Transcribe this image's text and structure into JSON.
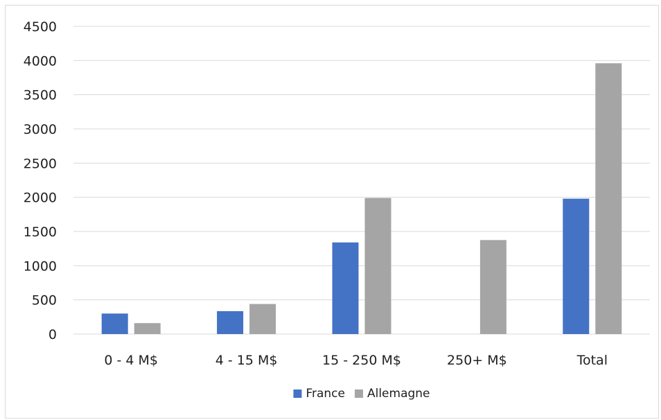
{
  "chart_data": {
    "type": "bar",
    "title": "",
    "xlabel": "",
    "ylabel": "",
    "categories": [
      "0 - 4 M$",
      "4 - 15 M$",
      "15 - 250 M$",
      "250+ M$",
      "Total"
    ],
    "series": [
      {
        "name": "France",
        "color": "#4472c4",
        "values": [
          300,
          335,
          1340,
          0,
          1980
        ]
      },
      {
        "name": "Allemagne",
        "color": "#a5a5a5",
        "values": [
          160,
          440,
          1990,
          1375,
          3960
        ]
      }
    ],
    "ylim": [
      0,
      4500
    ],
    "yticks": [
      "0",
      "500",
      "1000",
      "1500",
      "2000",
      "2500",
      "3000",
      "3500",
      "4000",
      "4500"
    ],
    "grid": true,
    "gridColor": "#d9d9d9",
    "legend": {
      "position": "bottom-center"
    }
  }
}
